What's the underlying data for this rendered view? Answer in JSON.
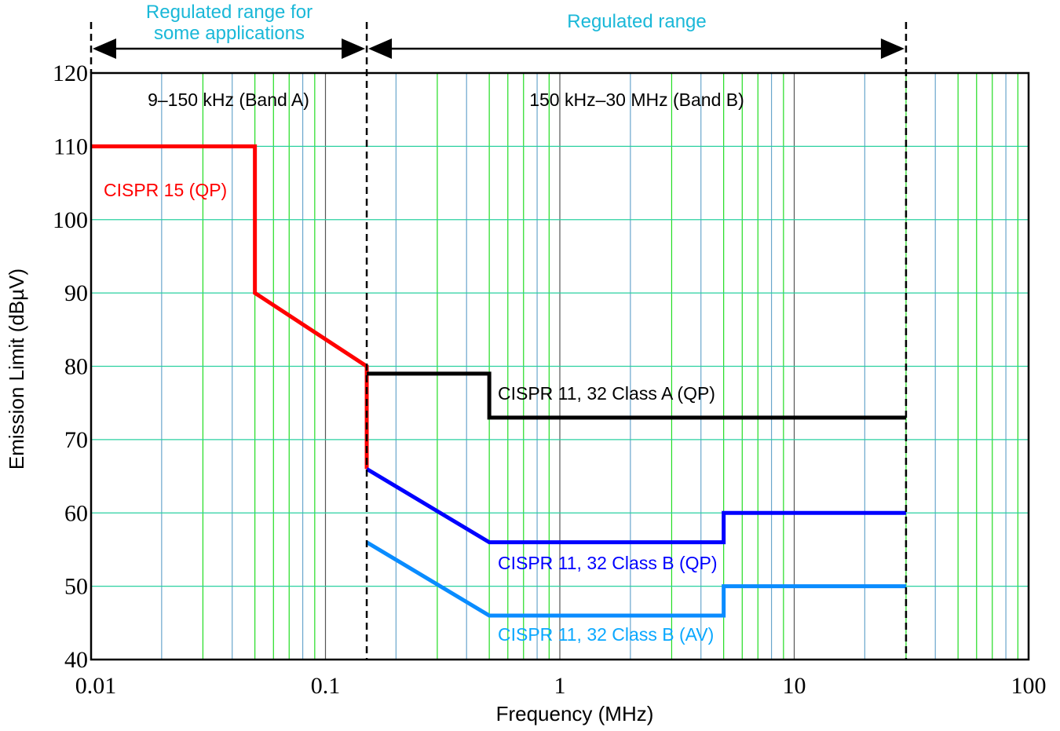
{
  "chart_data": {
    "type": "line",
    "xlabel": "Frequency (MHz)",
    "ylabel": "Emission Limit (dBµV)",
    "x_scale": "log",
    "xlim": [
      0.01,
      100
    ],
    "ylim": [
      40,
      120
    ],
    "x_ticks": [
      {
        "v": 0.01,
        "label": "0.01"
      },
      {
        "v": 0.1,
        "label": "0.1"
      },
      {
        "v": 1,
        "label": "1"
      },
      {
        "v": 10,
        "label": "10"
      },
      {
        "v": 100,
        "label": "100"
      }
    ],
    "y_ticks": [
      {
        "v": 40,
        "label": "40"
      },
      {
        "v": 50,
        "label": "50"
      },
      {
        "v": 60,
        "label": "60"
      },
      {
        "v": 70,
        "label": "70"
      },
      {
        "v": 80,
        "label": "80"
      },
      {
        "v": 90,
        "label": "90"
      },
      {
        "v": 100,
        "label": "100"
      },
      {
        "v": 110,
        "label": "110"
      },
      {
        "v": 120,
        "label": "120"
      }
    ],
    "grid": true,
    "series": [
      {
        "name": "CISPR 15 (QP)",
        "color": "#ff0000",
        "x": [
          0.01,
          0.05,
          0.05,
          0.15,
          0.15
        ],
        "y": [
          110,
          110,
          90,
          80,
          66
        ]
      },
      {
        "name": "CISPR 11, 32 Class A (QP)",
        "color": "#000000",
        "x": [
          0.15,
          0.5,
          0.5,
          30
        ],
        "y": [
          79,
          79,
          73,
          73
        ]
      },
      {
        "name": "CISPR 11, 32 Class B (QP)",
        "color": "#0000ff",
        "x": [
          0.15,
          0.5,
          5,
          5,
          30
        ],
        "y": [
          66,
          56,
          56,
          60,
          60
        ]
      },
      {
        "name": "CISPR 11, 32 Class B (AV)",
        "color": "#0a8cff",
        "x": [
          0.15,
          0.5,
          5,
          5,
          30
        ],
        "y": [
          56,
          46,
          46,
          50,
          50
        ]
      }
    ],
    "annotations": {
      "range1": "Regulated range for some applications",
      "range1_line1": "Regulated range for",
      "range1_line2": "some applications",
      "range2": "Regulated range",
      "band_a": "9–150 kHz (Band A)",
      "band_b": "150 kHz–30 MHz (Band B)",
      "boundaries": [
        0.15,
        30
      ],
      "annotation_color": "#1ab8d8"
    }
  }
}
